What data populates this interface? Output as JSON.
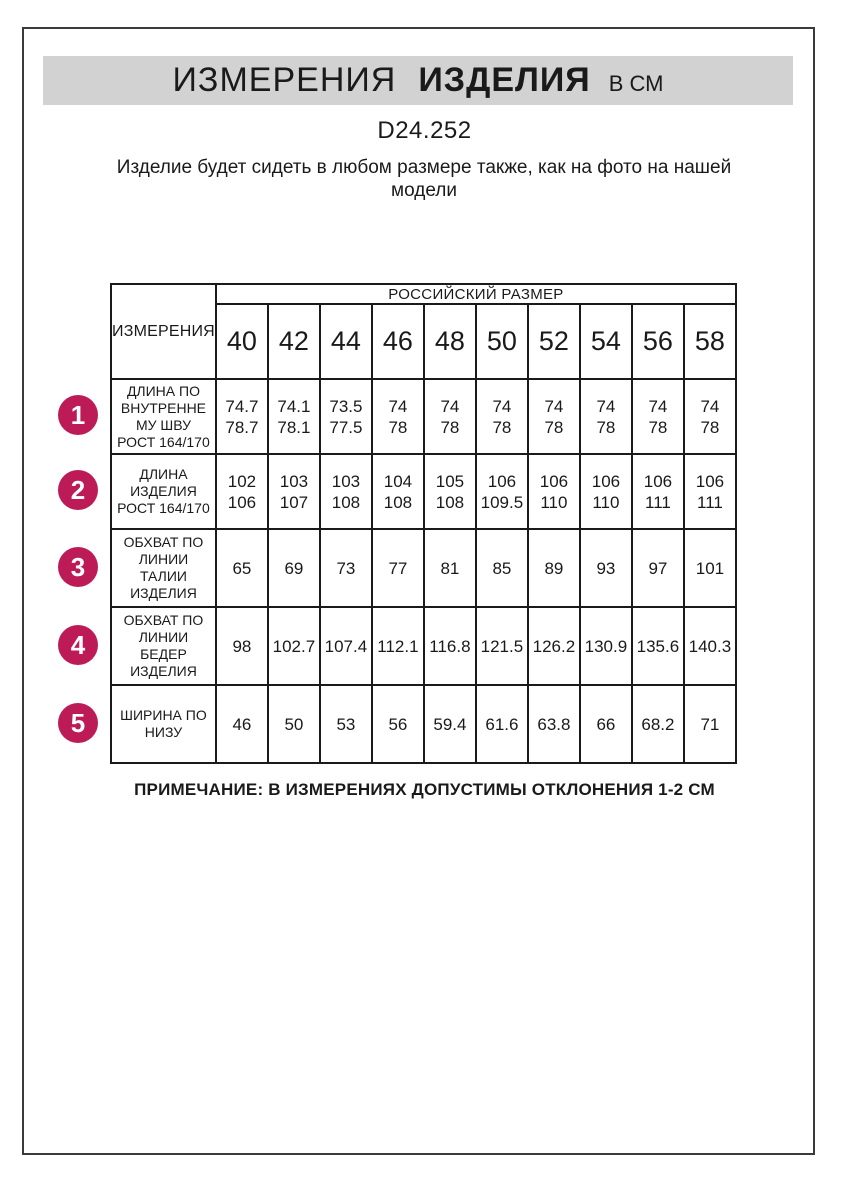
{
  "page": {
    "title_part1": "ИЗМЕРЕНИЯ",
    "title_part2": "ИЗДЕЛИЯ",
    "title_part3": "В СМ",
    "model_code": "D24.252",
    "description": "Изделие будет сидеть в любом размере также, как на фото на нашей модели",
    "note": "ПРИМЕЧАНИЕ: В ИЗМЕРЕНИЯХ ДОПУСТИМЫ ОТКЛОНЕНИЯ 1-2 СМ"
  },
  "colors": {
    "accent_badge": "#bd1b57",
    "title_bar_bg": "#d2d2d2",
    "table_border": "#1a1a1a"
  },
  "table": {
    "measure_header": "ИЗМЕРЕНИЯ",
    "size_group_header": "РОССИЙСКИЙ РАЗМЕР",
    "sizes": [
      "40",
      "42",
      "44",
      "46",
      "48",
      "50",
      "52",
      "54",
      "56",
      "58"
    ],
    "rows": [
      {
        "num": "1",
        "label": "ДЛИНА ПО\nВНУТРЕННЕ\nМУ ШВУ\nРОСТ 164/170",
        "values": [
          "74.7\n78.7",
          "74.1\n78.1",
          "73.5\n77.5",
          "74\n78",
          "74\n78",
          "74\n78",
          "74\n78",
          "74\n78",
          "74\n78",
          "74\n78"
        ]
      },
      {
        "num": "2",
        "label": "ДЛИНА\nИЗДЕЛИЯ\nРОСТ 164/170",
        "values": [
          "102\n106",
          "103\n107",
          "103\n108",
          "104\n108",
          "105\n108",
          "106\n109.5",
          "106\n110",
          "106\n110",
          "106\n111",
          "106\n111"
        ]
      },
      {
        "num": "3",
        "label": "ОБХВАТ ПО\nЛИНИИ\nТАЛИИ\nИЗДЕЛИЯ",
        "values": [
          "65",
          "69",
          "73",
          "77",
          "81",
          "85",
          "89",
          "93",
          "97",
          "101"
        ]
      },
      {
        "num": "4",
        "label": "ОБХВАТ ПО\nЛИНИИ\nБЕДЕР\nИЗДЕЛИЯ",
        "values": [
          "98",
          "102.7",
          "107.4",
          "112.1",
          "116.8",
          "121.5",
          "126.2",
          "130.9",
          "135.6",
          "140.3"
        ]
      },
      {
        "num": "5",
        "label": "ШИРИНА ПО\nНИЗУ",
        "values": [
          "46",
          "50",
          "53",
          "56",
          "59.4",
          "61.6",
          "63.8",
          "66",
          "68.2",
          "71"
        ]
      }
    ]
  }
}
